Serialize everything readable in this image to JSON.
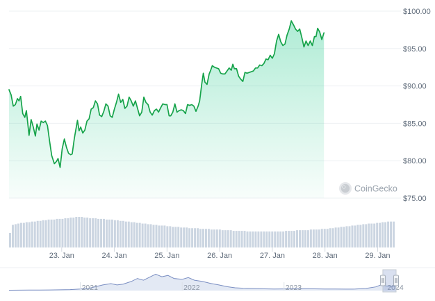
{
  "watermark": {
    "label": "CoinGecko",
    "icon": "coingecko-logo-icon"
  },
  "chart_data": {
    "type": "line",
    "title": "",
    "xlabel": "",
    "ylabel": "",
    "ylim": [
      75,
      100
    ],
    "yticks": [
      "$100.00",
      "$95.00",
      "$90.00",
      "$85.00",
      "$80.00",
      "$75.00"
    ],
    "yticks_values": [
      100,
      95,
      90,
      85,
      80,
      75
    ],
    "xticks": [
      {
        "label": "23. Jan",
        "x": 1.5
      },
      {
        "label": "24. Jan",
        "x": 2.5
      },
      {
        "label": "25. Jan",
        "x": 3.5
      },
      {
        "label": "26. Jan",
        "x": 4.5
      },
      {
        "label": "27. Jan",
        "x": 5.5
      },
      {
        "label": "28. Jan",
        "x": 6.5
      },
      {
        "label": "29. Jan",
        "x": 7.5
      }
    ],
    "xlim": [
      0.5,
      7.85
    ],
    "grid": "horizontal",
    "line_color": "#16a34a",
    "area_color_top": "#16c784",
    "volume_color": "#cbd5e1",
    "series": [
      {
        "values": [
          {
            "x": 0.5,
            "y": 89.5
          },
          {
            "x": 0.54,
            "y": 88.8
          },
          {
            "x": 0.58,
            "y": 87.3
          },
          {
            "x": 0.62,
            "y": 87.5
          },
          {
            "x": 0.66,
            "y": 88.3
          },
          {
            "x": 0.69,
            "y": 88.0
          },
          {
            "x": 0.72,
            "y": 88.6
          },
          {
            "x": 0.76,
            "y": 86.3
          },
          {
            "x": 0.8,
            "y": 85.8
          },
          {
            "x": 0.83,
            "y": 86.7
          },
          {
            "x": 0.88,
            "y": 83.4
          },
          {
            "x": 0.92,
            "y": 85.5
          },
          {
            "x": 0.96,
            "y": 84.5
          },
          {
            "x": 1.0,
            "y": 83.3
          },
          {
            "x": 1.03,
            "y": 84.9
          },
          {
            "x": 1.07,
            "y": 84.1
          },
          {
            "x": 1.11,
            "y": 85.3
          },
          {
            "x": 1.15,
            "y": 85.1
          },
          {
            "x": 1.19,
            "y": 85.3
          },
          {
            "x": 1.23,
            "y": 84.7
          },
          {
            "x": 1.27,
            "y": 82.6
          },
          {
            "x": 1.31,
            "y": 80.7
          },
          {
            "x": 1.36,
            "y": 79.6
          },
          {
            "x": 1.4,
            "y": 79.9
          },
          {
            "x": 1.43,
            "y": 80.3
          },
          {
            "x": 1.47,
            "y": 79.1
          },
          {
            "x": 1.51,
            "y": 81.6
          },
          {
            "x": 1.55,
            "y": 82.9
          },
          {
            "x": 1.59,
            "y": 81.8
          },
          {
            "x": 1.63,
            "y": 81.0
          },
          {
            "x": 1.67,
            "y": 80.8
          },
          {
            "x": 1.7,
            "y": 80.9
          },
          {
            "x": 1.74,
            "y": 83.0
          },
          {
            "x": 1.78,
            "y": 84.6
          },
          {
            "x": 1.8,
            "y": 85.4
          },
          {
            "x": 1.83,
            "y": 84.0
          },
          {
            "x": 1.86,
            "y": 84.5
          },
          {
            "x": 1.9,
            "y": 83.7
          },
          {
            "x": 1.94,
            "y": 84.1
          },
          {
            "x": 1.98,
            "y": 85.3
          },
          {
            "x": 2.02,
            "y": 85.6
          },
          {
            "x": 2.06,
            "y": 86.9
          },
          {
            "x": 2.1,
            "y": 87.1
          },
          {
            "x": 2.14,
            "y": 88.0
          },
          {
            "x": 2.18,
            "y": 87.6
          },
          {
            "x": 2.22,
            "y": 86.1
          },
          {
            "x": 2.26,
            "y": 85.9
          },
          {
            "x": 2.3,
            "y": 86.6
          },
          {
            "x": 2.34,
            "y": 87.6
          },
          {
            "x": 2.38,
            "y": 87.3
          },
          {
            "x": 2.42,
            "y": 86.0
          },
          {
            "x": 2.46,
            "y": 85.8
          },
          {
            "x": 2.5,
            "y": 86.9
          },
          {
            "x": 2.54,
            "y": 87.8
          },
          {
            "x": 2.58,
            "y": 88.9
          },
          {
            "x": 2.62,
            "y": 87.8
          },
          {
            "x": 2.66,
            "y": 88.2
          },
          {
            "x": 2.7,
            "y": 87.0
          },
          {
            "x": 2.74,
            "y": 87.3
          },
          {
            "x": 2.78,
            "y": 88.5
          },
          {
            "x": 2.82,
            "y": 88.0
          },
          {
            "x": 2.86,
            "y": 87.3
          },
          {
            "x": 2.9,
            "y": 88.0
          },
          {
            "x": 2.94,
            "y": 87.0
          },
          {
            "x": 2.98,
            "y": 86.0
          },
          {
            "x": 3.02,
            "y": 86.5
          },
          {
            "x": 3.06,
            "y": 88.5
          },
          {
            "x": 3.1,
            "y": 87.8
          },
          {
            "x": 3.14,
            "y": 87.5
          },
          {
            "x": 3.18,
            "y": 86.5
          },
          {
            "x": 3.22,
            "y": 86.1
          },
          {
            "x": 3.26,
            "y": 86.7
          },
          {
            "x": 3.3,
            "y": 86.9
          },
          {
            "x": 3.34,
            "y": 86.5
          },
          {
            "x": 3.38,
            "y": 87.1
          },
          {
            "x": 3.42,
            "y": 87.6
          },
          {
            "x": 3.46,
            "y": 87.5
          },
          {
            "x": 3.5,
            "y": 87.5
          },
          {
            "x": 3.54,
            "y": 86.0
          },
          {
            "x": 3.57,
            "y": 86.0
          },
          {
            "x": 3.61,
            "y": 86.5
          },
          {
            "x": 3.65,
            "y": 87.6
          },
          {
            "x": 3.69,
            "y": 86.5
          },
          {
            "x": 3.73,
            "y": 86.7
          },
          {
            "x": 3.77,
            "y": 86.8
          },
          {
            "x": 3.81,
            "y": 86.7
          },
          {
            "x": 3.85,
            "y": 86.3
          },
          {
            "x": 3.89,
            "y": 87.5
          },
          {
            "x": 3.93,
            "y": 87.4
          },
          {
            "x": 3.97,
            "y": 87.5
          },
          {
            "x": 4.01,
            "y": 87.3
          },
          {
            "x": 4.05,
            "y": 86.6
          },
          {
            "x": 4.09,
            "y": 87.3
          },
          {
            "x": 4.12,
            "y": 88.0
          },
          {
            "x": 4.16,
            "y": 90.3
          },
          {
            "x": 4.19,
            "y": 91.7
          },
          {
            "x": 4.22,
            "y": 90.5
          },
          {
            "x": 4.26,
            "y": 90.2
          },
          {
            "x": 4.3,
            "y": 91.6
          },
          {
            "x": 4.33,
            "y": 92.1
          },
          {
            "x": 4.36,
            "y": 92.7
          },
          {
            "x": 4.4,
            "y": 92.5
          },
          {
            "x": 4.44,
            "y": 92.4
          },
          {
            "x": 4.48,
            "y": 92.3
          },
          {
            "x": 4.52,
            "y": 91.7
          },
          {
            "x": 4.56,
            "y": 91.6
          },
          {
            "x": 4.6,
            "y": 91.6
          },
          {
            "x": 4.64,
            "y": 92.0
          },
          {
            "x": 4.68,
            "y": 92.4
          },
          {
            "x": 4.72,
            "y": 92.1
          },
          {
            "x": 4.75,
            "y": 92.9
          },
          {
            "x": 4.78,
            "y": 92.3
          },
          {
            "x": 4.82,
            "y": 92.3
          },
          {
            "x": 4.86,
            "y": 91.3
          },
          {
            "x": 4.9,
            "y": 90.9
          },
          {
            "x": 4.94,
            "y": 90.6
          },
          {
            "x": 4.98,
            "y": 91.8
          },
          {
            "x": 5.02,
            "y": 91.7
          },
          {
            "x": 5.06,
            "y": 91.8
          },
          {
            "x": 5.1,
            "y": 91.9
          },
          {
            "x": 5.14,
            "y": 92.0
          },
          {
            "x": 5.18,
            "y": 92.4
          },
          {
            "x": 5.22,
            "y": 92.4
          },
          {
            "x": 5.26,
            "y": 92.8
          },
          {
            "x": 5.3,
            "y": 92.7
          },
          {
            "x": 5.34,
            "y": 93.0
          },
          {
            "x": 5.38,
            "y": 93.6
          },
          {
            "x": 5.42,
            "y": 93.5
          },
          {
            "x": 5.46,
            "y": 94.1
          },
          {
            "x": 5.5,
            "y": 93.7
          },
          {
            "x": 5.54,
            "y": 94.3
          },
          {
            "x": 5.58,
            "y": 96.0
          },
          {
            "x": 5.62,
            "y": 96.9
          },
          {
            "x": 5.66,
            "y": 95.9
          },
          {
            "x": 5.7,
            "y": 95.4
          },
          {
            "x": 5.74,
            "y": 95.6
          },
          {
            "x": 5.78,
            "y": 96.8
          },
          {
            "x": 5.82,
            "y": 97.6
          },
          {
            "x": 5.86,
            "y": 98.7
          },
          {
            "x": 5.9,
            "y": 98.2
          },
          {
            "x": 5.94,
            "y": 97.6
          },
          {
            "x": 5.98,
            "y": 97.3
          },
          {
            "x": 6.02,
            "y": 97.6
          },
          {
            "x": 6.06,
            "y": 96.5
          },
          {
            "x": 6.1,
            "y": 95.2
          },
          {
            "x": 6.14,
            "y": 96.0
          },
          {
            "x": 6.18,
            "y": 95.4
          },
          {
            "x": 6.22,
            "y": 96.0
          },
          {
            "x": 6.26,
            "y": 95.4
          },
          {
            "x": 6.3,
            "y": 96.6
          },
          {
            "x": 6.33,
            "y": 96.6
          },
          {
            "x": 6.36,
            "y": 97.7
          },
          {
            "x": 6.4,
            "y": 97.2
          },
          {
            "x": 6.44,
            "y": 96.2
          },
          {
            "x": 6.48,
            "y": 97.1
          }
        ]
      }
    ],
    "volume": [
      22,
      34,
      35,
      36,
      37,
      37,
      38,
      38,
      39,
      39,
      40,
      40,
      41,
      41,
      42,
      42,
      42,
      43,
      43,
      43,
      44,
      44,
      45,
      45,
      46,
      46,
      46,
      45,
      45,
      44,
      44,
      44,
      43,
      43,
      43,
      42,
      42,
      42,
      41,
      41,
      40,
      40,
      39,
      39,
      38,
      38,
      37,
      37,
      36,
      36,
      35,
      35,
      34,
      34,
      33,
      33,
      33,
      32,
      32,
      31,
      31,
      31,
      30,
      30,
      30,
      29,
      29,
      29,
      29,
      28,
      28,
      28,
      28,
      27,
      27,
      27,
      27,
      26,
      26,
      26,
      26,
      25,
      25,
      25,
      25,
      25,
      24,
      24,
      24,
      24,
      24,
      24,
      24,
      24,
      24,
      24,
      24,
      24,
      24,
      24,
      25,
      25,
      25,
      25,
      26,
      26,
      26,
      26,
      26,
      27,
      27,
      27,
      27,
      28,
      28,
      28,
      29,
      29,
      30,
      30,
      31,
      31,
      32,
      32,
      33,
      33,
      34,
      34,
      35,
      35,
      36,
      36,
      36,
      37,
      37,
      38,
      38,
      39,
      39,
      39
    ],
    "navigator": {
      "labels": [
        {
          "label": "2021",
          "x": 2021
        },
        {
          "label": "2022",
          "x": 2022
        },
        {
          "label": "2023",
          "x": 2023
        },
        {
          "label": "2024",
          "x": 2024
        }
      ],
      "xlim": [
        2020.3,
        2024.1
      ],
      "ylim": [
        0,
        900
      ],
      "selection": [
        2023.97,
        2024.1
      ],
      "line_color": "#7a8ec2",
      "fill_color": "#e3e9f4",
      "values": [
        {
          "x": 2020.3,
          "y": 15
        },
        {
          "x": 2020.4,
          "y": 18
        },
        {
          "x": 2020.5,
          "y": 22
        },
        {
          "x": 2020.6,
          "y": 25
        },
        {
          "x": 2020.7,
          "y": 28
        },
        {
          "x": 2020.8,
          "y": 35
        },
        {
          "x": 2020.9,
          "y": 45
        },
        {
          "x": 2021.0,
          "y": 70
        },
        {
          "x": 2021.08,
          "y": 100
        },
        {
          "x": 2021.15,
          "y": 180
        },
        {
          "x": 2021.22,
          "y": 260
        },
        {
          "x": 2021.3,
          "y": 320
        },
        {
          "x": 2021.36,
          "y": 260
        },
        {
          "x": 2021.42,
          "y": 300
        },
        {
          "x": 2021.5,
          "y": 420
        },
        {
          "x": 2021.56,
          "y": 560
        },
        {
          "x": 2021.62,
          "y": 480
        },
        {
          "x": 2021.68,
          "y": 620
        },
        {
          "x": 2021.74,
          "y": 760
        },
        {
          "x": 2021.8,
          "y": 640
        },
        {
          "x": 2021.86,
          "y": 700
        },
        {
          "x": 2021.92,
          "y": 560
        },
        {
          "x": 2022.0,
          "y": 520
        },
        {
          "x": 2022.06,
          "y": 600
        },
        {
          "x": 2022.12,
          "y": 480
        },
        {
          "x": 2022.2,
          "y": 420
        },
        {
          "x": 2022.28,
          "y": 330
        },
        {
          "x": 2022.36,
          "y": 260
        },
        {
          "x": 2022.44,
          "y": 180
        },
        {
          "x": 2022.52,
          "y": 130
        },
        {
          "x": 2022.6,
          "y": 110
        },
        {
          "x": 2022.7,
          "y": 95
        },
        {
          "x": 2022.8,
          "y": 85
        },
        {
          "x": 2022.9,
          "y": 70
        },
        {
          "x": 2023.0,
          "y": 78
        },
        {
          "x": 2023.1,
          "y": 90
        },
        {
          "x": 2023.2,
          "y": 88
        },
        {
          "x": 2023.3,
          "y": 80
        },
        {
          "x": 2023.4,
          "y": 72
        },
        {
          "x": 2023.5,
          "y": 70
        },
        {
          "x": 2023.6,
          "y": 68
        },
        {
          "x": 2023.7,
          "y": 72
        },
        {
          "x": 2023.8,
          "y": 95
        },
        {
          "x": 2023.9,
          "y": 170
        },
        {
          "x": 2023.95,
          "y": 260
        },
        {
          "x": 2024.0,
          "y": 220
        },
        {
          "x": 2024.05,
          "y": 200
        },
        {
          "x": 2024.1,
          "y": 210
        }
      ]
    }
  }
}
